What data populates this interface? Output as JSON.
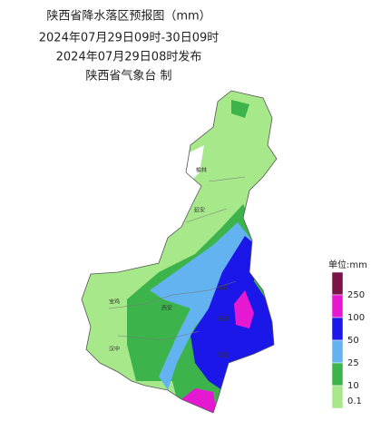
{
  "header": {
    "title": "陕西省降水落区预报图（mm）",
    "period": "2024年07月29日09时-30日09时",
    "issued": "2024年07月29日08时发布",
    "issuer": "陕西省气象台 制"
  },
  "legend": {
    "unit": "单位:mm",
    "bands": [
      {
        "color": "#7a1447"
      },
      {
        "color": "#e619d2"
      },
      {
        "color": "#1a17e8"
      },
      {
        "color": "#63b3f0"
      },
      {
        "color": "#3cb44b"
      },
      {
        "color": "#a6e88a"
      }
    ],
    "labels": [
      "250",
      "100",
      "50",
      "25",
      "10",
      "0.1"
    ]
  },
  "cities": [
    "榆林",
    "延安",
    "宝鸡",
    "西安",
    "汉中",
    "安康",
    "商洛",
    "渭南"
  ]
}
